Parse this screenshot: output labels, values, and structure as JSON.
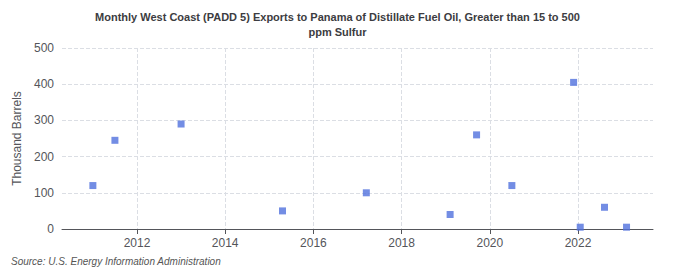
{
  "chart_data": {
    "type": "scatter",
    "title": "Monthly West Coast (PADD 5) Exports to Panama of Distillate Fuel Oil, Greater than 15 to 500\nppm Sulfur",
    "ylabel": "Thousand Barrels",
    "annotations": [
      "Source: U.S. Energy Information Administration"
    ],
    "x": [
      2011.0,
      2011.5,
      2013.0,
      2015.3,
      2017.2,
      2019.1,
      2019.7,
      2020.5,
      2021.9,
      2022.05,
      2022.6,
      2023.1
    ],
    "values": [
      120,
      245,
      290,
      50,
      100,
      40,
      260,
      120,
      405,
      5,
      60,
      5
    ],
    "marker": "square",
    "xlim": [
      2010.3,
      2023.7
    ],
    "xticks": [
      2012,
      2014,
      2016,
      2018,
      2020,
      2022
    ],
    "ylim": [
      0,
      500
    ],
    "yticks": [
      0,
      100,
      200,
      300,
      400,
      500
    ],
    "grid": true
  }
}
